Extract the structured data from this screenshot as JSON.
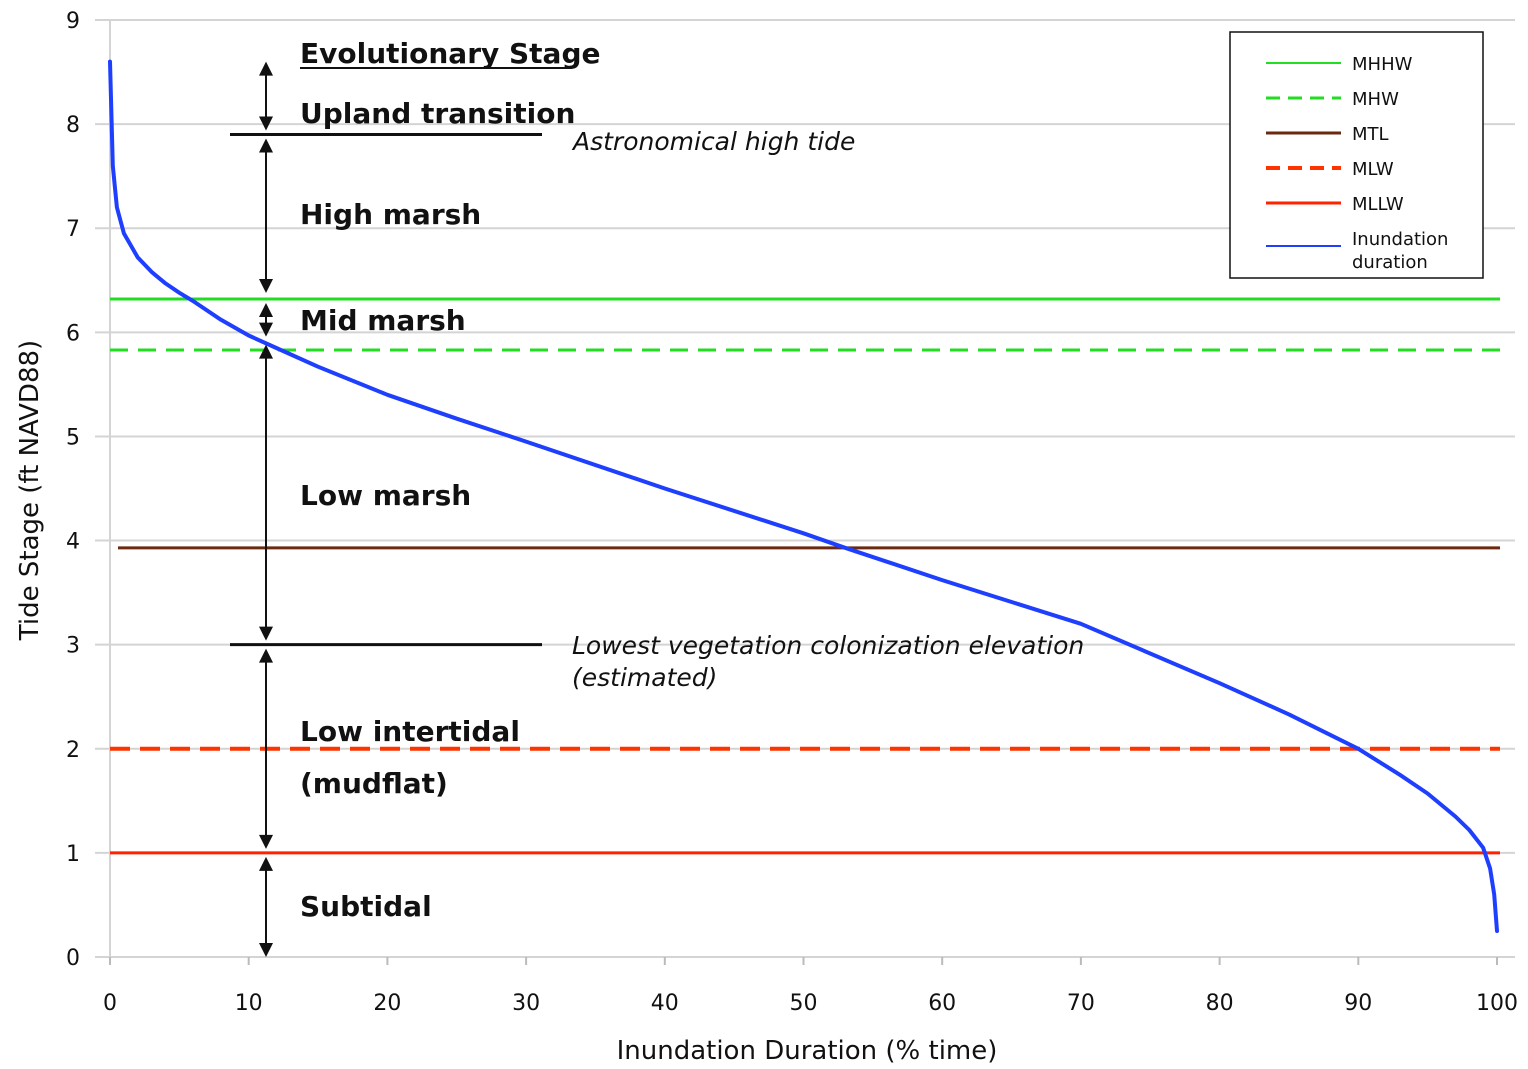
{
  "chart_data": {
    "type": "line",
    "xlabel": "Inundation Duration (% time)",
    "ylabel": "Tide Stage (ft NAVD88)",
    "xlim": [
      0,
      100
    ],
    "ylim": [
      0,
      9
    ],
    "x_ticks": [
      "0",
      "10",
      "20",
      "30",
      "40",
      "50",
      "60",
      "70",
      "80",
      "90",
      "100"
    ],
    "y_ticks": [
      "0",
      "1",
      "2",
      "3",
      "4",
      "5",
      "6",
      "7",
      "8",
      "9"
    ],
    "grid": true,
    "legend_position": "top-right",
    "reference_lines": [
      {
        "name": "MHHW",
        "y": 6.32,
        "color": "#22dd22",
        "dashed": false
      },
      {
        "name": "MHW",
        "y": 5.83,
        "color": "#22dd22",
        "dashed": true
      },
      {
        "name": "MTL",
        "y": 3.93,
        "color": "#6b2a10",
        "dashed": false
      },
      {
        "name": "MLW",
        "y": 2.0,
        "color": "#ff3300",
        "dashed": true
      },
      {
        "name": "MLLW",
        "y": 1.0,
        "color": "#ff2200",
        "dashed": false
      }
    ],
    "series": [
      {
        "name": "Inundation duration",
        "color": "#1f3fff",
        "x": [
          0,
          0.2,
          0.5,
          1,
          2,
          3,
          4,
          5,
          6,
          8,
          10,
          12,
          15,
          20,
          25,
          30,
          40,
          50,
          53,
          60,
          70,
          80,
          85,
          90,
          93,
          95,
          97,
          98,
          99,
          99.5,
          99.8,
          100
        ],
        "y": [
          8.6,
          7.6,
          7.2,
          6.95,
          6.72,
          6.58,
          6.47,
          6.38,
          6.3,
          6.12,
          5.97,
          5.85,
          5.67,
          5.4,
          5.17,
          4.95,
          4.5,
          4.07,
          3.93,
          3.62,
          3.2,
          2.63,
          2.33,
          2.0,
          1.75,
          1.57,
          1.35,
          1.22,
          1.05,
          0.85,
          0.6,
          0.25
        ]
      }
    ],
    "stage_title": "Evolutionary Stage",
    "stages": [
      "Upland transition",
      "High marsh",
      "Mid marsh",
      "Low marsh",
      "Low intertidal",
      "(mudflat)",
      "Subtidal"
    ],
    "annotations": {
      "high_tide": "Astronomical high tide",
      "veg_line1": "Lowest vegetation colonization elevation",
      "veg_line2": "(estimated)"
    },
    "legend": [
      {
        "label": "MHHW"
      },
      {
        "label": "MHW"
      },
      {
        "label": "MTL"
      },
      {
        "label": "MLW"
      },
      {
        "label": "MLLW"
      },
      {
        "label": "Inundation",
        "label2": "duration"
      }
    ]
  }
}
